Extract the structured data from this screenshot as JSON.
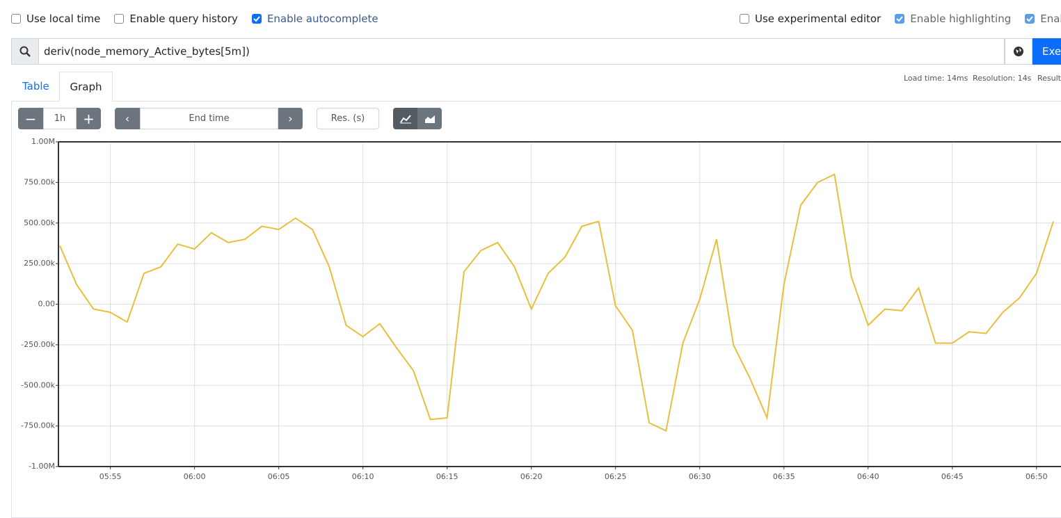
{
  "toolbar": {
    "left_options": [
      {
        "label": "Use local time",
        "checked": false
      },
      {
        "label": "Enable query history",
        "checked": false
      },
      {
        "label": "Enable autocomplete",
        "checked": true
      }
    ],
    "right_options": [
      {
        "label": "Use experimental editor",
        "checked": false
      },
      {
        "label": "Enable highlighting",
        "checked": true
      },
      {
        "label": "Enable",
        "checked": true
      }
    ]
  },
  "query": {
    "expression": "deriv(node_memory_Active_bytes[5m])",
    "execute": "Exec"
  },
  "tabs": [
    "Table",
    "Graph"
  ],
  "stats": [
    "Load time: 14ms",
    "Resolution: 14s",
    "Result"
  ],
  "controls": {
    "range": "1h",
    "end_time": "End time",
    "resolution": "Res. (s)"
  },
  "chart_data": {
    "type": "line",
    "color": "#e8bf3d",
    "grid": true,
    "x": [
      "05:52",
      "05:53",
      "05:54",
      "05:55",
      "05:56",
      "05:57",
      "05:58",
      "05:59",
      "06:00",
      "06:01",
      "06:02",
      "06:03",
      "06:04",
      "06:05",
      "06:06",
      "06:07",
      "06:08",
      "06:09",
      "06:10",
      "06:11",
      "06:12",
      "06:13",
      "06:14",
      "06:15",
      "06:16",
      "06:17",
      "06:18",
      "06:19",
      "06:20",
      "06:21",
      "06:22",
      "06:23",
      "06:24",
      "06:25",
      "06:26",
      "06:27",
      "06:28",
      "06:29",
      "06:30",
      "06:31",
      "06:32",
      "06:33",
      "06:34",
      "06:35",
      "06:36",
      "06:37",
      "06:38",
      "06:39",
      "06:40",
      "06:41",
      "06:42",
      "06:43",
      "06:44",
      "06:45",
      "06:46",
      "06:47",
      "06:48",
      "06:49",
      "06:50",
      "06:51"
    ],
    "values": [
      360000,
      120000,
      -30000,
      -50000,
      -110000,
      190000,
      230000,
      370000,
      340000,
      440000,
      380000,
      400000,
      480000,
      460000,
      530000,
      460000,
      230000,
      -130000,
      -200000,
      -120000,
      -270000,
      -410000,
      -710000,
      -700000,
      200000,
      330000,
      380000,
      230000,
      -30000,
      190000,
      290000,
      480000,
      510000,
      -10000,
      -160000,
      -730000,
      -780000,
      -240000,
      30000,
      400000,
      -250000,
      -460000,
      -700000,
      120000,
      610000,
      750000,
      800000,
      170000,
      -130000,
      -30000,
      -40000,
      100000,
      -240000,
      -240000,
      -170000,
      -180000,
      -50000,
      40000,
      190000,
      510000
    ],
    "xlim": [
      "05:52",
      "06:51"
    ],
    "xticks": [
      "05:55",
      "06:00",
      "06:05",
      "06:10",
      "06:15",
      "06:20",
      "06:25",
      "06:30",
      "06:35",
      "06:40",
      "06:45",
      "06:50"
    ],
    "ylim": [
      -1000000,
      1000000
    ],
    "yticks": [
      {
        "value": -1000000,
        "label": "-1.00M"
      },
      {
        "value": -750000,
        "label": "-750.00k"
      },
      {
        "value": -500000,
        "label": "-500.00k"
      },
      {
        "value": -250000,
        "label": "-250.00k"
      },
      {
        "value": 0,
        "label": "0.00"
      },
      {
        "value": 250000,
        "label": "250.00k"
      },
      {
        "value": 500000,
        "label": "500.00k"
      },
      {
        "value": 750000,
        "label": "750.00k"
      },
      {
        "value": 1000000,
        "label": "1.00M"
      }
    ]
  }
}
